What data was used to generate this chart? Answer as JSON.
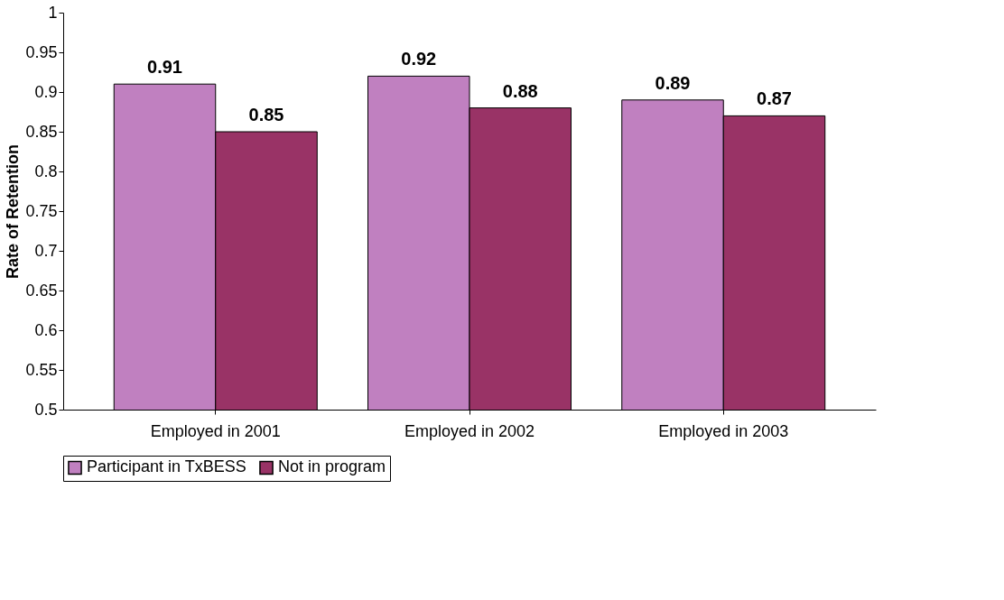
{
  "chart_data": {
    "type": "bar",
    "ylabel": "Rate of Retention",
    "categories": [
      "Employed in 2001",
      "Employed in 2002",
      "Employed in 2003"
    ],
    "series": [
      {
        "name": "Participant in TxBESS",
        "color": "#c080c0",
        "values": [
          0.91,
          0.92,
          0.89
        ]
      },
      {
        "name": "Not in program",
        "color": "#993366",
        "values": [
          0.85,
          0.88,
          0.87
        ]
      }
    ],
    "ylim": [
      0.5,
      1
    ],
    "yticks": [
      0.5,
      0.55,
      0.6,
      0.65,
      0.7,
      0.75,
      0.8,
      0.85,
      0.9,
      0.95,
      1
    ],
    "grid": false,
    "legend": "bottom",
    "data_labels": true
  }
}
